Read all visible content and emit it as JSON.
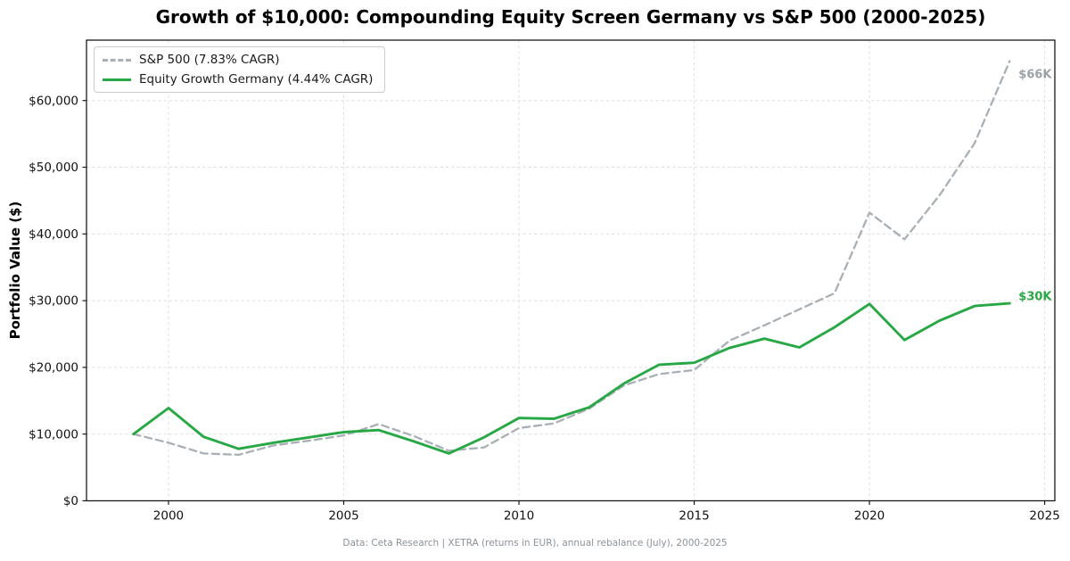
{
  "footer": "Data: Ceta Research | XETRA (returns in EUR), annual rebalance (July), 2000-2025",
  "chart_data": {
    "type": "line",
    "title": "Growth of $10,000: Compounding Equity Screen Germany vs S&P 500 (2000-2025)",
    "xlabel": "",
    "ylabel": "Portfolio Value ($)",
    "x": [
      1999,
      2000,
      2001,
      2002,
      2003,
      2004,
      2005,
      2006,
      2007,
      2008,
      2009,
      2010,
      2011,
      2012,
      2013,
      2014,
      2015,
      2016,
      2017,
      2018,
      2019,
      2020,
      2021,
      2022,
      2023,
      2024
    ],
    "series": [
      {
        "name": "S&P 500 (7.83% CAGR)",
        "color": "#a9b0b5",
        "style": "dashed",
        "values": [
          10000,
          8700,
          7100,
          6900,
          8300,
          9000,
          9800,
          11500,
          9700,
          7500,
          8000,
          10900,
          11600,
          13800,
          17300,
          19000,
          19600,
          24000,
          26300,
          28700,
          31100,
          43200,
          39200,
          45800,
          53600,
          65900
        ]
      },
      {
        "name": "Equity Growth Germany (4.44% CAGR)",
        "color": "#28a745",
        "style": "solid",
        "values": [
          10000,
          13900,
          9600,
          7800,
          8700,
          9500,
          10300,
          10600,
          8900,
          7100,
          9500,
          12400,
          12300,
          14000,
          17600,
          20400,
          20700,
          22900,
          24300,
          23000,
          26000,
          29500,
          24100,
          27000,
          29200,
          29600
        ]
      }
    ],
    "xticks": [
      {
        "v": 2000,
        "label": "2000"
      },
      {
        "v": 2005,
        "label": "2005"
      },
      {
        "v": 2010,
        "label": "2010"
      },
      {
        "v": 2015,
        "label": "2015"
      },
      {
        "v": 2020,
        "label": "2020"
      },
      {
        "v": 2025,
        "label": "2025"
      }
    ],
    "yticks": [
      {
        "v": 0,
        "label": "$0"
      },
      {
        "v": 10000,
        "label": "$10,000"
      },
      {
        "v": 20000,
        "label": "$20,000"
      },
      {
        "v": 30000,
        "label": "$30,000"
      },
      {
        "v": 40000,
        "label": "$40,000"
      },
      {
        "v": 50000,
        "label": "$50,000"
      },
      {
        "v": 60000,
        "label": "$60,000"
      }
    ],
    "xlim": [
      1997.66,
      2025.29
    ],
    "ylim": [
      0,
      69050
    ],
    "grid": true,
    "legend_position": "upper-left",
    "annotations": [
      {
        "text": "$66K",
        "value": 65900,
        "series": "S&P 500",
        "color": "#9aa1a7"
      },
      {
        "text": "$30K",
        "value": 29600,
        "series": "Equity Growth Germany",
        "color": "#28a745"
      }
    ],
    "colors": {
      "grid": "#dedede",
      "spine": "#1a1a1a",
      "tick_label": "#111111"
    }
  }
}
